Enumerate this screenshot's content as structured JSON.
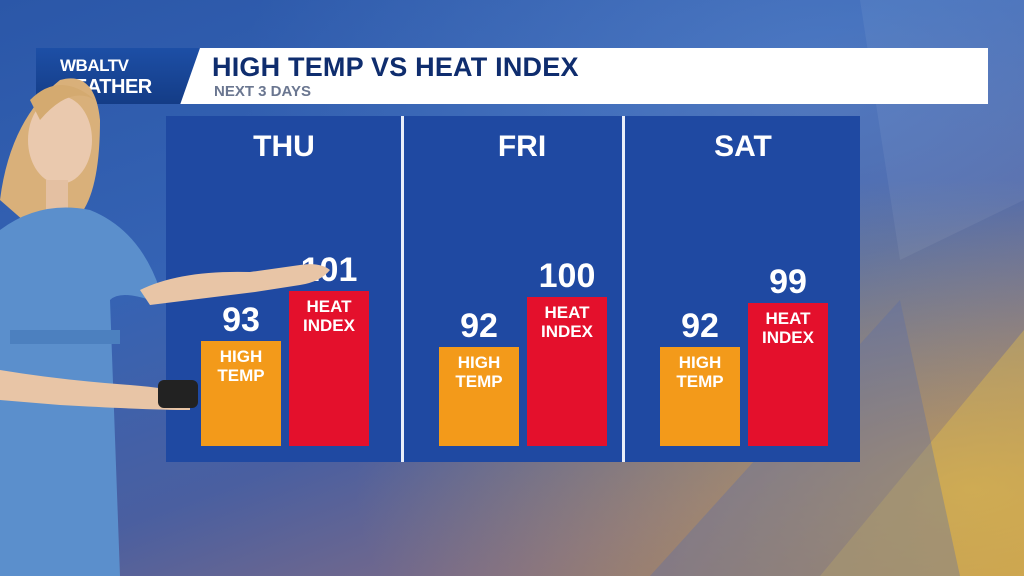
{
  "header": {
    "logo_top": "WBALTV",
    "logo_bottom": "EATHER",
    "title": "HIGH TEMP VS HEAT INDEX",
    "subtitle": "NEXT 3 DAYS"
  },
  "captions": {
    "high_temp": [
      "HIGH",
      "TEMP"
    ],
    "heat_index": [
      "HEAT",
      "INDEX"
    ]
  },
  "colors": {
    "high_temp": "#f39a1a",
    "heat_index": "#e4102c",
    "panel": "#1f49a2"
  },
  "chart_data": {
    "type": "bar",
    "title": "HIGH TEMP VS HEAT INDEX",
    "subtitle": "NEXT 3 DAYS",
    "categories": [
      "THU",
      "FRI",
      "SAT"
    ],
    "series": [
      {
        "name": "HIGH TEMP",
        "values": [
          93,
          92,
          92
        ]
      },
      {
        "name": "HEAT INDEX",
        "values": [
          101,
          100,
          99
        ]
      }
    ],
    "value_labels": [
      [
        "93",
        "101"
      ],
      [
        "92",
        "100"
      ],
      [
        "92",
        "99"
      ]
    ],
    "ylim": [
      0,
      101
    ],
    "grid": false,
    "legend": "none"
  }
}
